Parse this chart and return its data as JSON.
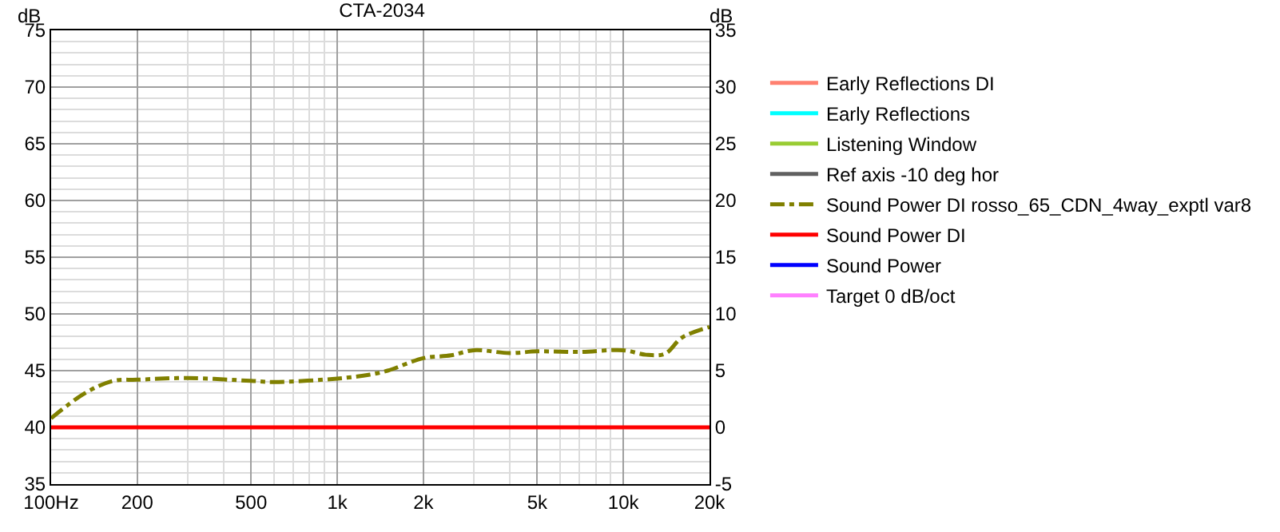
{
  "chart_data": {
    "type": "line",
    "title": "CTA-2034",
    "ylabel": "dB",
    "y2label": "dB",
    "x": [
      100,
      131,
      165,
      200,
      300,
      500,
      600,
      1000,
      1300,
      1500,
      2000,
      2500,
      3000,
      4000,
      5000,
      7000,
      10000,
      12000,
      14000,
      16000,
      20000
    ],
    "log": "x",
    "grid": true,
    "legend": "right",
    "xlim": [
      100,
      20000
    ],
    "xticks": [
      {
        "value": 100,
        "label": "100Hz"
      },
      200,
      500,
      {
        "value": 1000,
        "label": "1k"
      },
      {
        "value": 2000,
        "label": "2k"
      },
      {
        "value": 5000,
        "label": "5k"
      },
      {
        "value": 10000,
        "label": "10k"
      },
      {
        "value": 20000,
        "label": "20k"
      }
    ],
    "ylim": [
      35,
      75
    ],
    "yticks": [
      35,
      40,
      45,
      50,
      55,
      60,
      65,
      70,
      75
    ],
    "y2lim": [
      -5,
      35
    ],
    "y2ticks": [
      -5,
      0,
      5,
      10,
      15,
      20,
      25,
      30,
      35
    ],
    "series": [
      {
        "name": "Early Reflections DI",
        "color": "#ff8070",
        "axis": "y2",
        "line_style": "solid",
        "values": [
          null,
          null,
          null,
          null,
          null,
          null,
          null,
          null,
          null,
          null,
          null,
          null,
          null,
          null,
          null,
          null,
          null,
          null,
          null,
          null,
          null
        ]
      },
      {
        "name": "Early Reflections",
        "color": "#00ffff",
        "axis": "y",
        "line_style": "solid",
        "values": [
          null,
          null,
          null,
          null,
          null,
          null,
          null,
          null,
          null,
          null,
          null,
          null,
          null,
          null,
          null,
          null,
          null,
          null,
          null,
          null,
          null
        ]
      },
      {
        "name": "Listening Window",
        "color": "#99cc33",
        "axis": "y",
        "line_style": "solid",
        "values": [
          null,
          null,
          null,
          null,
          null,
          null,
          null,
          null,
          null,
          null,
          null,
          null,
          null,
          null,
          null,
          null,
          null,
          null,
          null,
          null,
          null
        ]
      },
      {
        "name": "Ref axis -10 deg hor",
        "color": "#606060",
        "axis": "y",
        "line_style": "solid",
        "values": [
          null,
          null,
          null,
          null,
          null,
          null,
          null,
          null,
          null,
          null,
          null,
          null,
          null,
          null,
          null,
          null,
          null,
          null,
          null,
          null,
          null
        ]
      },
      {
        "name": "Sound Power DI rosso_65_CDN_4way_exptl var8",
        "color": "#808000",
        "axis": "y2",
        "line_style": "dashdot",
        "values": [
          0.8,
          3.0,
          4.1,
          4.2,
          4.35,
          4.1,
          4.0,
          4.3,
          4.65,
          5.0,
          6.1,
          6.35,
          6.8,
          6.55,
          6.7,
          6.65,
          6.8,
          6.4,
          6.5,
          7.9,
          8.85
        ]
      },
      {
        "name": "Sound Power DI",
        "color": "#ff0000",
        "axis": "y2",
        "line_style": "solid",
        "values": [
          0,
          0,
          0,
          0,
          0,
          0,
          0,
          0,
          0,
          0,
          0,
          0,
          0,
          0,
          0,
          0,
          0,
          0,
          0,
          0,
          0
        ]
      },
      {
        "name": "Sound Power",
        "color": "#0000ff",
        "axis": "y",
        "line_style": "solid",
        "values": [
          null,
          null,
          null,
          null,
          null,
          null,
          null,
          null,
          null,
          null,
          null,
          null,
          null,
          null,
          null,
          null,
          null,
          null,
          null,
          null,
          null
        ]
      },
      {
        "name": "Target 0 dB/oct",
        "color": "#ff80ff",
        "axis": "y2",
        "line_style": "solid",
        "values": [
          null,
          null,
          null,
          null,
          null,
          null,
          null,
          null,
          null,
          null,
          null,
          null,
          null,
          null,
          null,
          null,
          null,
          null,
          null,
          null,
          null
        ]
      }
    ]
  }
}
